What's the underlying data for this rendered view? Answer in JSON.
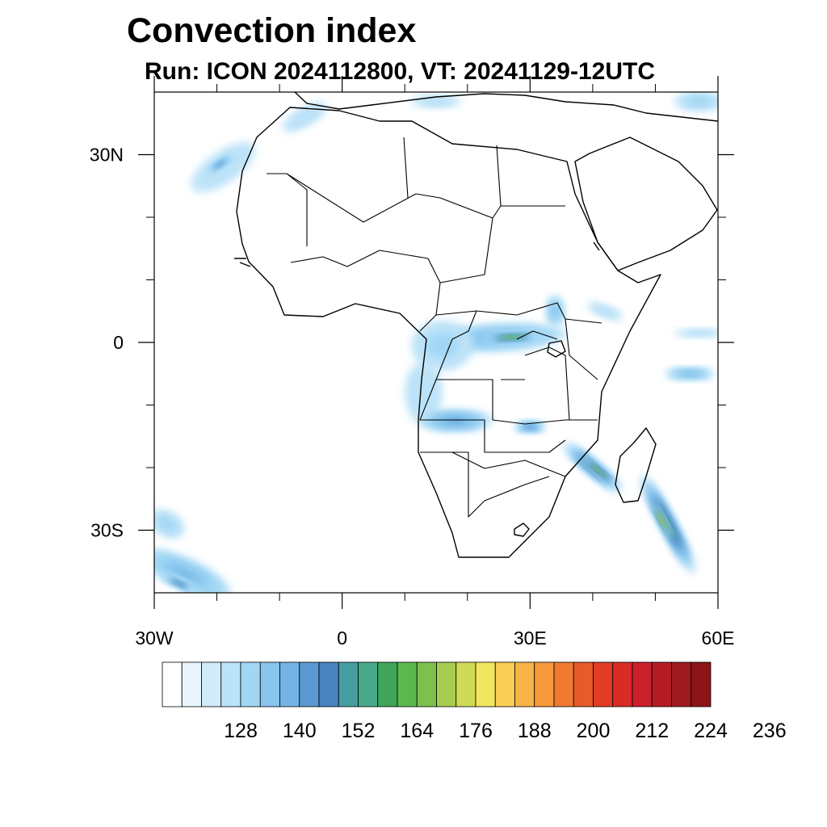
{
  "header": {
    "title": "Convection index",
    "subtitle": "Run: ICON 2024112800,  VT: 20241129-12UTC"
  },
  "map": {
    "projection": "cylindrical-equidistant",
    "lon_range": [
      -30,
      60
    ],
    "lat_range": [
      -40,
      40
    ],
    "x_ticks": [
      {
        "value": -30,
        "label": "30W"
      },
      {
        "value": 0,
        "label": "0"
      },
      {
        "value": 30,
        "label": "30E"
      },
      {
        "value": 60,
        "label": "60E"
      }
    ],
    "y_ticks": [
      {
        "value": 30,
        "label": "30N"
      },
      {
        "value": 0,
        "label": "0"
      },
      {
        "value": -30,
        "label": "30S"
      }
    ],
    "minor_x_ticks": [
      -20,
      -10,
      10,
      20,
      40,
      50
    ],
    "minor_y_ticks": [
      20,
      10,
      -10,
      -20
    ],
    "convection_regions": [
      {
        "lon": -19,
        "lat": 28,
        "rx": 6,
        "ry": 2.5,
        "rot": -35,
        "level": 3
      },
      {
        "lon": -19.5,
        "lat": 28.5,
        "rx": 2.5,
        "ry": 0.8,
        "rot": -35,
        "level": 8
      },
      {
        "lon": -6,
        "lat": 36,
        "rx": 4,
        "ry": 1.5,
        "rot": -30,
        "level": 3
      },
      {
        "lon": 15,
        "lat": 38.5,
        "rx": 4,
        "ry": 1,
        "rot": 0,
        "level": 3
      },
      {
        "lon": 57,
        "lat": 38.5,
        "rx": 4,
        "ry": 1.5,
        "rot": 0,
        "level": 4
      },
      {
        "lon": 25,
        "lat": 0.8,
        "rx": 11,
        "ry": 2.2,
        "rot": -3,
        "level": 6
      },
      {
        "lon": 27,
        "lat": 0.8,
        "rx": 4.5,
        "ry": 0.8,
        "rot": -3,
        "level": 14
      },
      {
        "lon": 16,
        "lat": -0.5,
        "rx": 5,
        "ry": 4,
        "rot": 0,
        "level": 4
      },
      {
        "lon": 13,
        "lat": -8,
        "rx": 3,
        "ry": 5,
        "rot": 0,
        "level": 3
      },
      {
        "lon": 18,
        "lat": -12.5,
        "rx": 6,
        "ry": 1.8,
        "rot": 0,
        "level": 7
      },
      {
        "lon": 30,
        "lat": -13.5,
        "rx": 2.5,
        "ry": 1,
        "rot": 0,
        "level": 8
      },
      {
        "lon": 40,
        "lat": -20,
        "rx": 6,
        "ry": 1.4,
        "rot": 40,
        "level": 10
      },
      {
        "lon": 41,
        "lat": -20.5,
        "rx": 3.5,
        "ry": 0.6,
        "rot": 40,
        "level": 16
      },
      {
        "lon": 52,
        "lat": -29,
        "rx": 9,
        "ry": 1.5,
        "rot": 62,
        "level": 11
      },
      {
        "lon": 51,
        "lat": -28.5,
        "rx": 3,
        "ry": 0.6,
        "rot": 62,
        "level": 20
      },
      {
        "lon": 55.5,
        "lat": -5,
        "rx": 4,
        "ry": 1,
        "rot": 0,
        "level": 6
      },
      {
        "lon": 57,
        "lat": 1.5,
        "rx": 4,
        "ry": 0.7,
        "rot": 0,
        "level": 3
      },
      {
        "lon": 42,
        "lat": 5,
        "rx": 3,
        "ry": 1,
        "rot": 20,
        "level": 3
      },
      {
        "lon": 34,
        "lat": 5,
        "rx": 1.5,
        "ry": 2.5,
        "rot": 0,
        "level": 5
      },
      {
        "lon": -25,
        "lat": -37,
        "rx": 8,
        "ry": 2.5,
        "rot": 25,
        "level": 6
      },
      {
        "lon": -26,
        "lat": -38.5,
        "rx": 3,
        "ry": 0.8,
        "rot": 25,
        "level": 9
      },
      {
        "lon": -28,
        "lat": -29,
        "rx": 3,
        "ry": 2,
        "rot": 30,
        "level": 4
      }
    ],
    "colorbar": {
      "colors": [
        "#ffffff",
        "#eaf5fd",
        "#d2ebfa",
        "#bbe2f8",
        "#a1d7f5",
        "#88c6ee",
        "#73b4e5",
        "#5a99d2",
        "#4a84bf",
        "#469ea2",
        "#47a989",
        "#3fa55b",
        "#5ab84e",
        "#7cc14c",
        "#a6cd4f",
        "#cfdb56",
        "#f2e65e",
        "#f9ce54",
        "#f8b447",
        "#f7993c",
        "#f07a32",
        "#e65a2b",
        "#e03c26",
        "#d92b28",
        "#c9202b",
        "#b31c25",
        "#9e1a1e",
        "#8b1518"
      ],
      "labels": [
        "128",
        "140",
        "152",
        "164",
        "176",
        "188",
        "200",
        "212",
        "224",
        "236"
      ],
      "label_bounds": [
        4,
        7,
        10,
        13,
        16,
        19,
        22,
        25,
        28,
        31
      ]
    }
  }
}
